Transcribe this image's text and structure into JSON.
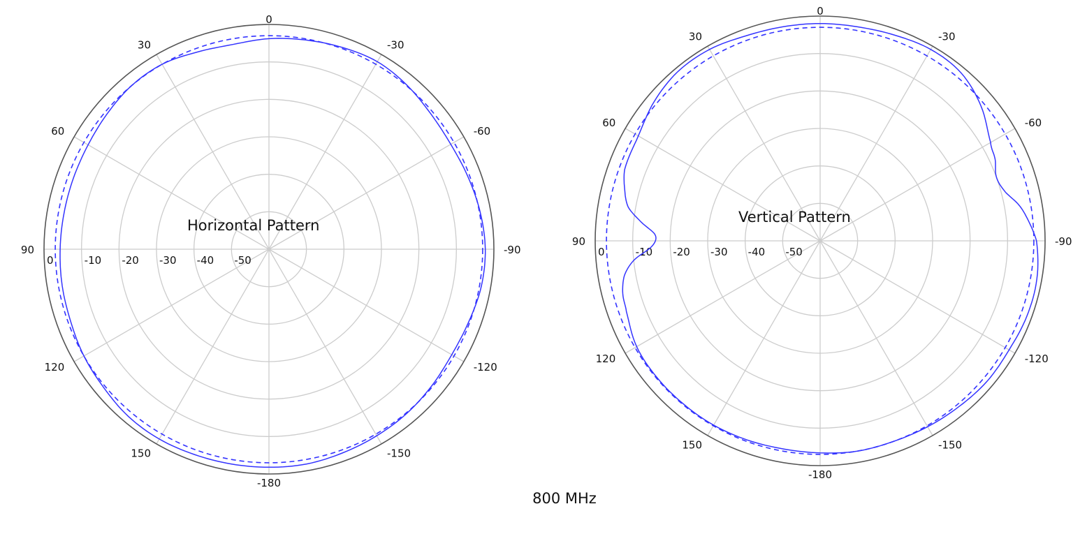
{
  "caption": "800 MHz",
  "colors": {
    "outer_ring": "#555555",
    "grid": "#cccccc",
    "trace": "#3333ff"
  },
  "chart_data": [
    {
      "type": "polar-line",
      "title": "Horizontal Pattern",
      "radial_range": [
        -60,
        0
      ],
      "radial_ticks": [
        0,
        -10,
        -20,
        -30,
        -40,
        -50
      ],
      "radial_tick_labels": [
        "0",
        "-10",
        "-20",
        "-30",
        "-40",
        "-50"
      ],
      "angle_ticks": [
        0,
        30,
        60,
        90,
        120,
        150,
        -180,
        -150,
        -120,
        -90,
        -60,
        -30
      ],
      "angle_tick_labels": [
        "0",
        "30",
        "60",
        "90",
        "120",
        "150",
        "-180",
        "-150",
        "-120",
        "-90",
        "-60",
        "-30"
      ],
      "angle_direction": "positive angles counter-clockwise, 0 at top",
      "grid": true,
      "reference_level_db": -3,
      "series": [
        {
          "style": "solid",
          "angles": [
            0,
            10,
            20,
            30,
            40,
            50,
            60,
            70,
            80,
            90,
            100,
            110,
            120,
            130,
            140,
            150,
            160,
            170,
            180,
            190,
            200,
            210,
            220,
            230,
            240,
            250,
            260,
            270,
            280,
            290,
            300,
            310,
            320,
            330,
            340,
            350
          ],
          "values": [
            -3.8,
            -4.5,
            -4.0,
            -3.0,
            -3.0,
            -3.7,
            -4.3,
            -4.5,
            -4.5,
            -4.3,
            -4.0,
            -3.7,
            -3.0,
            -2.5,
            -1.7,
            -1.5,
            -1.7,
            -1.8,
            -1.8,
            -1.8,
            -2.2,
            -2.5,
            -2.8,
            -3.3,
            -3.7,
            -3.3,
            -2.5,
            -2.3,
            -2.8,
            -3.5,
            -4.0,
            -3.7,
            -2.8,
            -2.2,
            -2.7,
            -3.3
          ]
        },
        {
          "style": "dashed",
          "angles": [
            0,
            90,
            180,
            270
          ],
          "values": [
            -3.0,
            -3.0,
            -3.0,
            -3.0
          ]
        }
      ]
    },
    {
      "type": "polar-line",
      "title": "Vertical Pattern",
      "radial_range": [
        -60,
        0
      ],
      "radial_ticks": [
        0,
        -10,
        -20,
        -30,
        -40,
        -50
      ],
      "radial_tick_labels": [
        "0",
        "-10",
        "-20",
        "-30",
        "-40",
        "-50"
      ],
      "angle_ticks": [
        0,
        30,
        60,
        90,
        120,
        150,
        -180,
        -150,
        -120,
        -90,
        -60,
        -30
      ],
      "angle_tick_labels": [
        "0",
        "30",
        "60",
        "90",
        "120",
        "150",
        "-180",
        "-150",
        "-120",
        "-90",
        "-60",
        "-30"
      ],
      "angle_direction": "positive angles counter-clockwise, 0 at top",
      "grid": true,
      "reference_level_db": -3,
      "series": [
        {
          "style": "solid",
          "angles": [
            0,
            10,
            20,
            30,
            40,
            50,
            60,
            70,
            75,
            80,
            84,
            88,
            92,
            96,
            100,
            105,
            110,
            120,
            130,
            140,
            150,
            160,
            170,
            180,
            190,
            200,
            210,
            220,
            230,
            240,
            250,
            260,
            270,
            275,
            280,
            285,
            290,
            295,
            300,
            310,
            320,
            330,
            340,
            350
          ],
          "values": [
            -2.0,
            -2.0,
            -1.8,
            -1.0,
            -1.0,
            -2.2,
            -4.0,
            -4.5,
            -6.0,
            -8.0,
            -12.0,
            -16.0,
            -15.0,
            -10.0,
            -7.0,
            -5.5,
            -5.0,
            -3.5,
            -3.2,
            -3.2,
            -3.2,
            -3.4,
            -3.6,
            -3.4,
            -3.0,
            -3.0,
            -2.7,
            -2.3,
            -1.8,
            -1.8,
            -1.3,
            -1.3,
            -2.3,
            -4.0,
            -6.0,
            -9.0,
            -10.0,
            -8.5,
            -7.5,
            -4.0,
            -1.5,
            -1.0,
            -1.6,
            -2.0
          ]
        },
        {
          "style": "dashed",
          "angles": [
            0,
            90,
            180,
            270
          ],
          "values": [
            -3.0,
            -3.0,
            -3.0,
            -3.0
          ]
        }
      ]
    }
  ]
}
